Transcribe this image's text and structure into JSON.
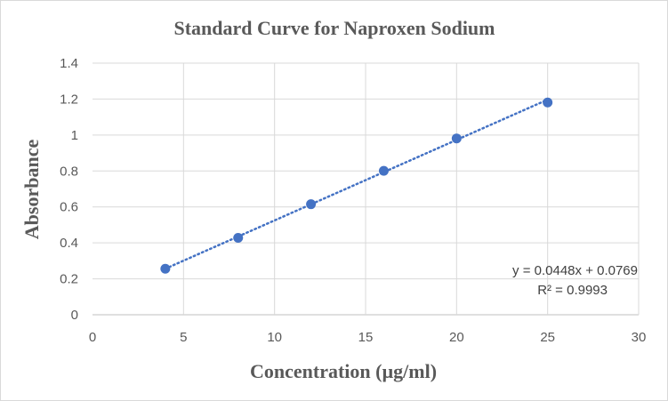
{
  "chart_data": {
    "type": "scatter",
    "title": "Standard Curve for Naproxen Sodium",
    "xlabel": "Concentration  (µg/ml)",
    "ylabel": "Absorbance",
    "xlim": [
      0,
      30
    ],
    "ylim": [
      0,
      1.4
    ],
    "x_ticks": [
      "0",
      "5",
      "10",
      "15",
      "20",
      "25",
      "30"
    ],
    "y_ticks": [
      "0",
      "0.2",
      "0.4",
      "0.6",
      "0.8",
      "1",
      "1.2",
      "1.4"
    ],
    "grid": true,
    "series": [
      {
        "x": [
          4,
          8,
          12,
          16,
          20,
          25
        ],
        "y": [
          0.256,
          0.428,
          0.615,
          0.801,
          0.981,
          1.181
        ],
        "color": "#4472c4"
      }
    ],
    "trendline": {
      "type": "linear",
      "slope": 0.0448,
      "intercept": 0.0769,
      "style": "dotted",
      "color": "#4472c4",
      "equation": "y = 0.0448x + 0.0769",
      "r_squared": "R² = 0.9993"
    }
  }
}
